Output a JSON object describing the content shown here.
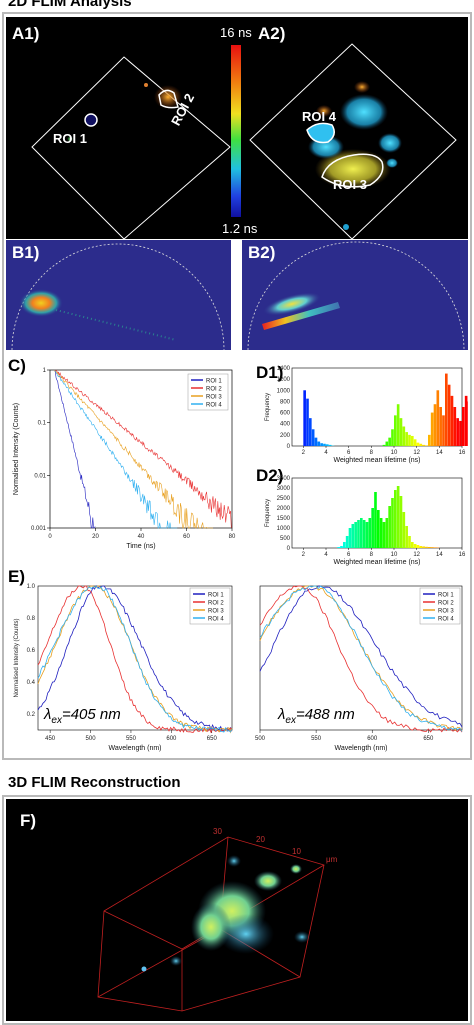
{
  "titles": {
    "analysis": "2D FLIM Analysis",
    "reconstruction": "3D FLIM Reconstruction"
  },
  "panels": {
    "a1": "A1)",
    "a2": "A2)",
    "b1": "B1)",
    "b2": "B2)",
    "c": "C)",
    "d1": "D1)",
    "d2": "D2)",
    "e": "E)",
    "f": "F)"
  },
  "colorbar": {
    "max": "16 ns",
    "min": "1.2 ns"
  },
  "rois": {
    "r1": "ROI 1",
    "r2": "ROI 2",
    "r3": "ROI 3",
    "r4": "ROI 4"
  },
  "colors": {
    "roi1": "#1f1fbf",
    "roi2": "#e83030",
    "roi3": "#e8a020",
    "roi4": "#30b0f0",
    "phasor_bg": "#2c2c8c",
    "image_bg": "#000000"
  },
  "chart_c": {
    "type": "line",
    "xlabel": "Time (ns)",
    "ylabel": "Normalised Intensity (Counts)",
    "yscale": "log",
    "xlim": [
      0,
      80
    ],
    "ylim": [
      0.001,
      1
    ],
    "xticks": [
      "0",
      "20",
      "40",
      "60",
      "80"
    ],
    "yticks": [
      "0.001",
      "0.01",
      "0.1",
      "1"
    ],
    "legend": [
      "ROI 1",
      "ROI 2",
      "ROI 3",
      "ROI 4"
    ],
    "lifetimes_ns": [
      2.5,
      12,
      9,
      7
    ]
  },
  "chart_d1": {
    "type": "bar",
    "xlabel": "Weighted mean lifetime (ns)",
    "ylabel": "Frequency",
    "xticks": [
      "2",
      "4",
      "6",
      "8",
      "10",
      "12",
      "14",
      "16"
    ],
    "yticks": [
      "0",
      "200",
      "400",
      "600",
      "800",
      "1000",
      "1200",
      "1400"
    ],
    "xlim": [
      1,
      16
    ],
    "ylim": [
      0,
      1400
    ],
    "bin_start": 2,
    "bin_width": 0.25,
    "values": [
      1000,
      850,
      500,
      300,
      150,
      80,
      50,
      40,
      30,
      20,
      5,
      0,
      0,
      0,
      0,
      0,
      0,
      0,
      0,
      0,
      0,
      0,
      0,
      0,
      0,
      0,
      0,
      0,
      20,
      80,
      150,
      300,
      550,
      750,
      500,
      350,
      250,
      200,
      180,
      120,
      60,
      40,
      20,
      10,
      200,
      600,
      750,
      1000,
      700,
      550,
      1300,
      1100,
      900,
      700,
      500,
      450,
      700,
      900,
      800,
      650,
      500,
      300,
      150,
      100,
      20,
      20,
      10,
      15
    ]
  },
  "chart_d2": {
    "type": "bar",
    "xlabel": "Weighted mean lifetime (ns)",
    "ylabel": "Frequency",
    "xticks": [
      "2",
      "4",
      "6",
      "8",
      "10",
      "12",
      "14",
      "16"
    ],
    "yticks": [
      "0",
      "500",
      "1000",
      "1500",
      "2000",
      "2500",
      "3000",
      "3500"
    ],
    "xlim": [
      1,
      16
    ],
    "ylim": [
      0,
      3500
    ],
    "bin_start": 5,
    "bin_width": 0.25,
    "values": [
      50,
      100,
      300,
      600,
      1000,
      1200,
      1300,
      1400,
      1500,
      1400,
      1300,
      1500,
      2000,
      2800,
      1900,
      1500,
      1300,
      1500,
      2100,
      2500,
      2900,
      3100,
      2600,
      1800,
      1100,
      600,
      300,
      200,
      150,
      100,
      80,
      60,
      50,
      40,
      30,
      20
    ]
  },
  "chart_e1": {
    "type": "line",
    "xlabel": "Wavelength (nm)",
    "ylabel": "Normalised Intensity (Counts)",
    "xlim": [
      435,
      675
    ],
    "ylim": [
      0.1,
      1.0
    ],
    "xticks": [
      "450",
      "500",
      "550",
      "600",
      "650"
    ],
    "yticks": [
      "0.2",
      "0.4",
      "0.6",
      "0.8",
      "1.0"
    ],
    "legend": [
      "ROI 1",
      "ROI 2",
      "ROI 3",
      "ROI 4"
    ],
    "excitation": "405 nm",
    "peaks_nm": [
      512,
      490,
      505,
      508
    ]
  },
  "chart_e2": {
    "type": "line",
    "xlabel": "Wavelength (nm)",
    "xlim": [
      500,
      680
    ],
    "ylim": [
      0.1,
      1.0
    ],
    "xticks": [
      "500",
      "550",
      "600",
      "650"
    ],
    "legend": [
      "ROI 1",
      "ROI 2",
      "ROI 3",
      "ROI 4"
    ],
    "excitation": "488 nm",
    "peaks_nm": [
      552,
      535,
      545,
      548
    ]
  },
  "volume_ticks": {
    "t30": "30",
    "t20": "20",
    "t10": "10",
    "unit": "μm"
  }
}
